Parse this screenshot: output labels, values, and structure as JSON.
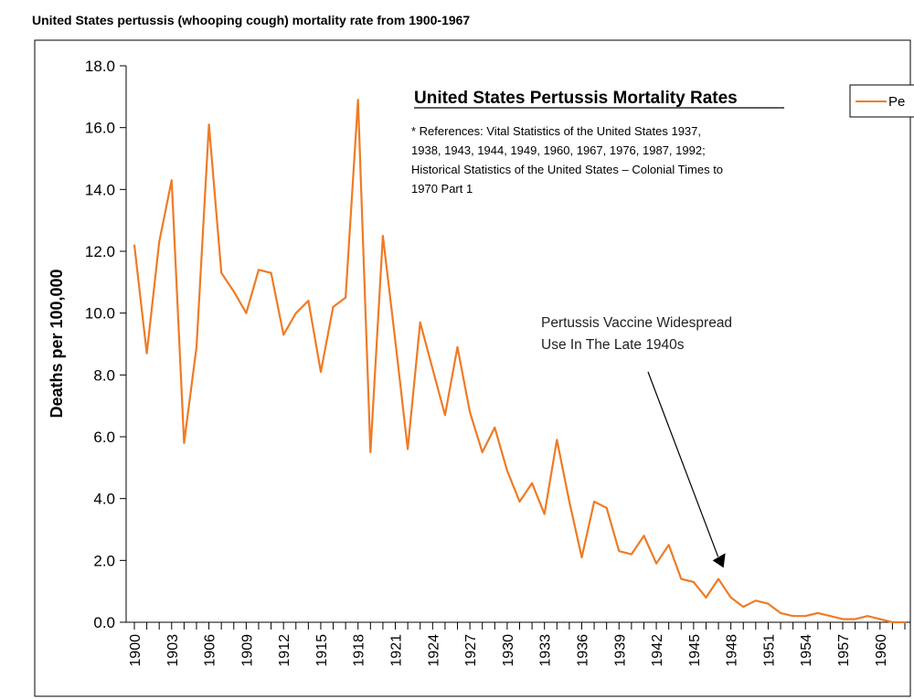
{
  "page": {
    "title": "United States pertussis (whooping cough) mortality rate from 1900-1967"
  },
  "chart_data": {
    "type": "line",
    "title": "United States Pertussis Mortality Rates",
    "references": [
      "* References: Vital Statistics of the United States 1937,",
      "1938, 1943, 1944, 1949, 1960, 1967, 1976, 1987, 1992;",
      "Historical Statistics of the United States – Colonial Times to",
      "1970 Part 1"
    ],
    "ylabel": "Deaths per 100,000",
    "xlabel": "",
    "ylim": [
      0,
      18
    ],
    "y_ticks": [
      "0.0",
      "2.0",
      "4.0",
      "6.0",
      "8.0",
      "10.0",
      "12.0",
      "14.0",
      "16.0",
      "18.0"
    ],
    "x_tick_labels": [
      "1900",
      "1903",
      "1906",
      "1909",
      "1912",
      "1915",
      "1918",
      "1921",
      "1924",
      "1927",
      "1930",
      "1933",
      "1936",
      "1939",
      "1942",
      "1945",
      "1948",
      "1951",
      "1954",
      "1957",
      "1960"
    ],
    "legend": {
      "label": "Pe",
      "position": "top-right"
    },
    "annotation": {
      "lines": [
        "Pertussis  Vaccine Widespread",
        "Use In The Late 1940s"
      ],
      "points_to": {
        "x": 1948,
        "y": 2.0
      }
    },
    "grid": false,
    "color": "#ef7b25",
    "series": [
      {
        "x": [
          1900,
          1901,
          1902,
          1903,
          1904,
          1905,
          1906,
          1907,
          1908,
          1909,
          1910,
          1911,
          1912,
          1913,
          1914,
          1915,
          1916,
          1917,
          1918,
          1919,
          1920,
          1921,
          1922,
          1923,
          1924,
          1925,
          1926,
          1927,
          1928,
          1929,
          1930,
          1931,
          1932,
          1933,
          1934,
          1935,
          1936,
          1937,
          1938,
          1939,
          1940,
          1941,
          1942,
          1943,
          1944,
          1945,
          1946,
          1947,
          1948,
          1949,
          1950,
          1951,
          1952,
          1953,
          1954,
          1955,
          1956,
          1957,
          1958,
          1959,
          1960,
          1961,
          1962
        ],
        "values": [
          12.2,
          8.7,
          12.3,
          14.3,
          5.8,
          8.9,
          16.1,
          11.3,
          10.7,
          10.0,
          11.4,
          11.3,
          9.3,
          10.0,
          10.4,
          8.1,
          10.2,
          10.5,
          16.9,
          5.5,
          12.5,
          9.1,
          5.6,
          9.7,
          8.2,
          6.7,
          8.9,
          6.8,
          5.5,
          6.3,
          4.9,
          3.9,
          4.5,
          3.5,
          5.9,
          3.9,
          2.1,
          3.9,
          3.7,
          2.3,
          2.2,
          2.8,
          1.9,
          2.5,
          1.4,
          1.3,
          0.8,
          1.4,
          0.8,
          0.5,
          0.7,
          0.6,
          0.3,
          0.2,
          0.2,
          0.3,
          0.2,
          0.1,
          0.1,
          0.2,
          0.1,
          0.0,
          0.0
        ]
      }
    ]
  }
}
